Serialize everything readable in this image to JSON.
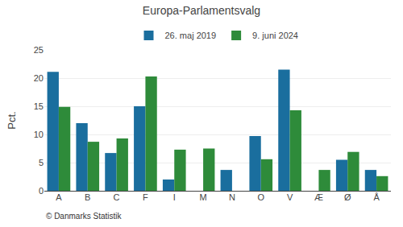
{
  "chart_data": {
    "type": "bar",
    "title": "Europa-Parlamentsvalg",
    "categories": [
      "A",
      "B",
      "C",
      "F",
      "I",
      "M",
      "N",
      "O",
      "V",
      "Æ",
      "Ø",
      "Å"
    ],
    "series": [
      {
        "name": "26. maj 2019",
        "color": "#1a6e9e",
        "values": [
          21.1,
          12.0,
          6.7,
          15.0,
          2.0,
          0.0,
          3.7,
          9.7,
          21.5,
          0.0,
          5.5,
          3.7
        ]
      },
      {
        "name": "9. juni 2024",
        "color": "#2e8b3a",
        "values": [
          14.9,
          8.7,
          9.3,
          20.3,
          7.3,
          7.5,
          0.0,
          5.6,
          14.3,
          3.7,
          6.9,
          2.6
        ]
      }
    ],
    "ylabel": "Pct.",
    "ylim": [
      0,
      25
    ],
    "yticks": [
      0,
      5,
      10,
      15,
      20,
      25
    ],
    "grid": true,
    "legend": "top",
    "annotations": [
      "© Danmarks Statistik"
    ]
  }
}
